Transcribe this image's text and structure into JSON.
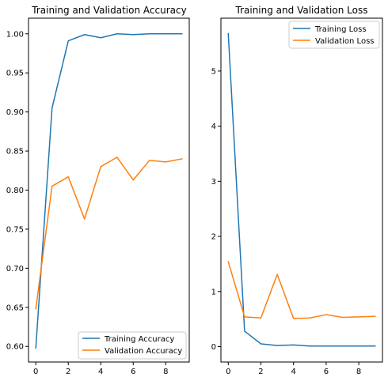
{
  "colors": {
    "series1": "#1f77b4",
    "series2": "#ff7f0e",
    "axis": "#000000",
    "legend_border": "#cccccc"
  },
  "chart_data": [
    {
      "type": "line",
      "title": "Training and Validation Accuracy",
      "xlabel": "",
      "ylabel": "",
      "xlim": [
        -0.45,
        9.45
      ],
      "ylim": [
        0.58,
        1.02
      ],
      "xticks": [
        0,
        2,
        4,
        6,
        8
      ],
      "yticks": [
        0.6,
        0.65,
        0.7,
        0.75,
        0.8,
        0.85,
        0.9,
        0.95,
        1.0
      ],
      "ytick_labels": [
        "0.60",
        "0.65",
        "0.70",
        "0.75",
        "0.80",
        "0.85",
        "0.90",
        "0.95",
        "1.00"
      ],
      "grid": false,
      "legend_position": "lower-right",
      "x": [
        0,
        1,
        2,
        3,
        4,
        5,
        6,
        7,
        8,
        9
      ],
      "series": [
        {
          "name": "Training Accuracy",
          "color": "#1f77b4",
          "values": [
            0.598,
            0.905,
            0.991,
            0.999,
            0.995,
            1.0,
            0.999,
            1.0,
            1.0,
            1.0
          ]
        },
        {
          "name": "Validation Accuracy",
          "color": "#ff7f0e",
          "values": [
            0.648,
            0.805,
            0.817,
            0.763,
            0.83,
            0.842,
            0.813,
            0.838,
            0.836,
            0.84
          ]
        }
      ]
    },
    {
      "type": "line",
      "title": "Training and Validation Loss",
      "xlabel": "",
      "ylabel": "",
      "xlim": [
        -0.45,
        9.45
      ],
      "ylim": [
        -0.28,
        5.96
      ],
      "xticks": [
        0,
        2,
        4,
        6,
        8
      ],
      "yticks": [
        0,
        1,
        2,
        3,
        4,
        5
      ],
      "ytick_labels": [
        "0",
        "1",
        "2",
        "3",
        "4",
        "5"
      ],
      "grid": false,
      "legend_position": "upper-right",
      "x": [
        0,
        1,
        2,
        3,
        4,
        5,
        6,
        7,
        8,
        9
      ],
      "series": [
        {
          "name": "Training Loss",
          "color": "#1f77b4",
          "values": [
            5.68,
            0.28,
            0.05,
            0.02,
            0.03,
            0.01,
            0.01,
            0.01,
            0.01,
            0.01
          ]
        },
        {
          "name": "Validation Loss",
          "color": "#ff7f0e",
          "values": [
            1.54,
            0.54,
            0.52,
            1.31,
            0.51,
            0.52,
            0.58,
            0.53,
            0.54,
            0.55
          ]
        }
      ]
    }
  ]
}
